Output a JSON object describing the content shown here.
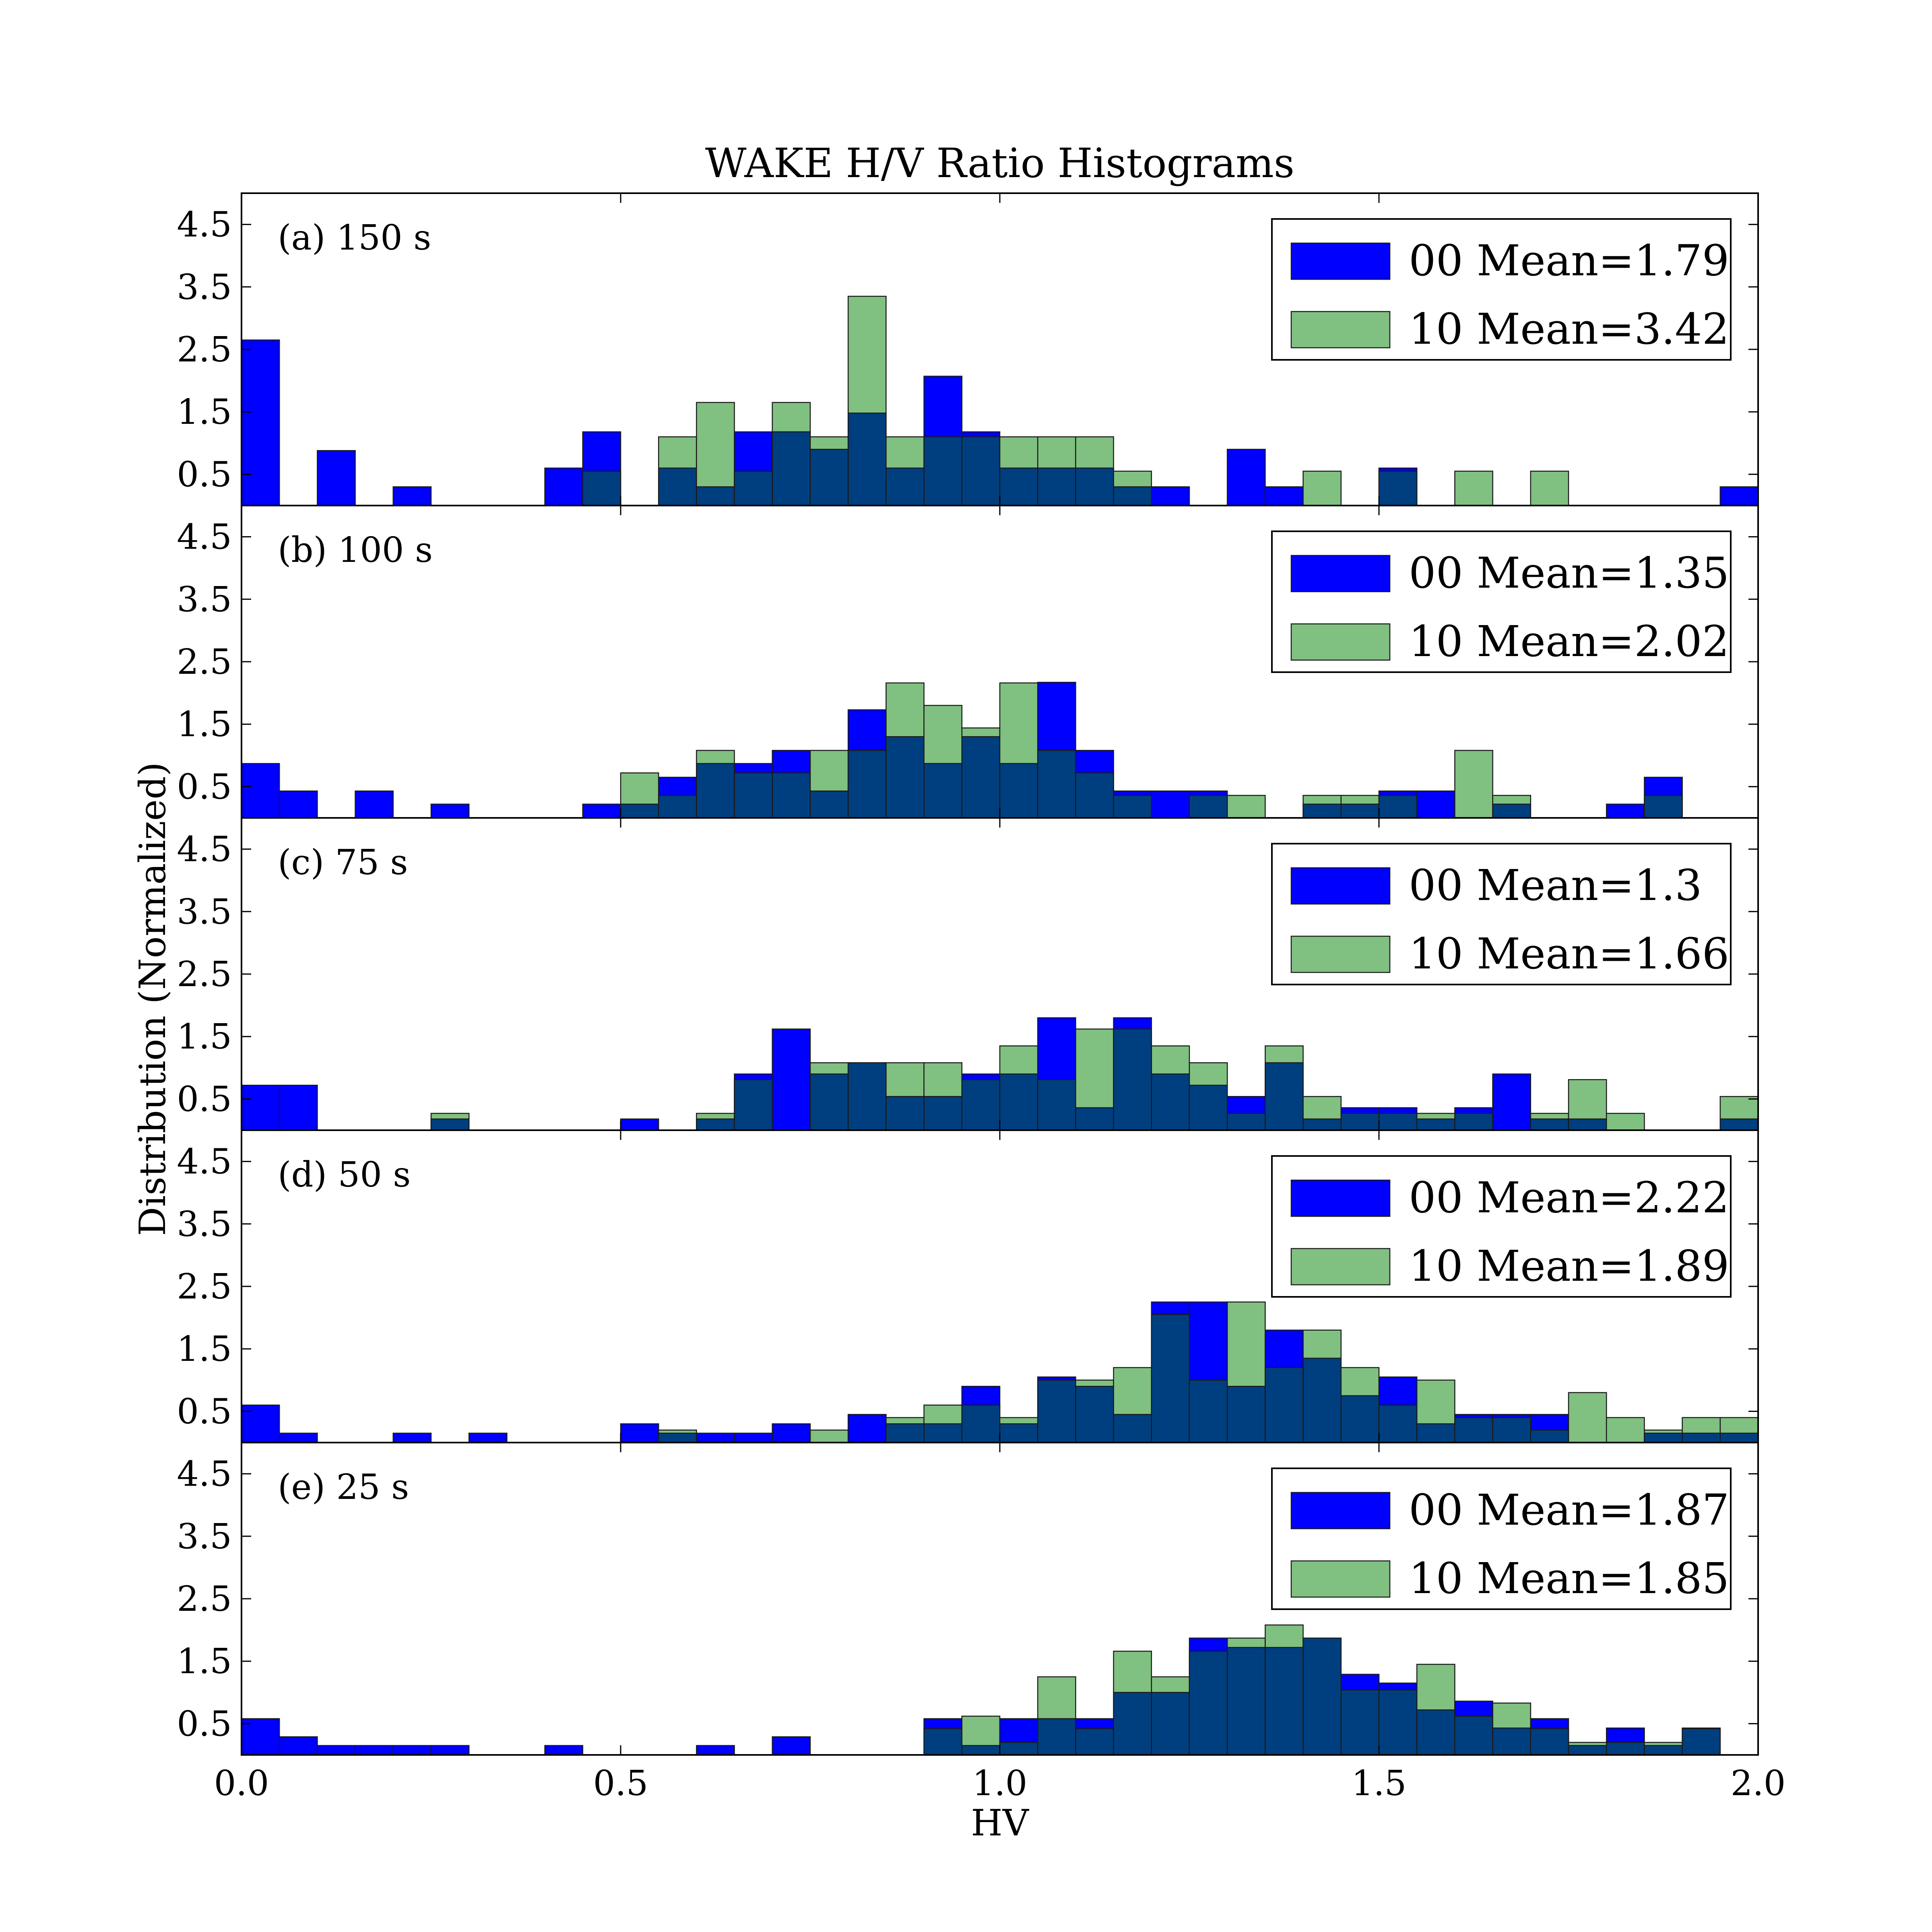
{
  "chart_data": {
    "type": "bar",
    "title": "WAKE H/V Ratio Histograms",
    "xlabel": "HV",
    "ylabel": "Distribution (Normalized)",
    "xlim": [
      0,
      2
    ],
    "ylim": [
      0,
      5
    ],
    "x_ticks": [
      "0.0",
      "0.5",
      "1.0",
      "1.5",
      "2.0"
    ],
    "y_ticks": [
      "0.5",
      "1.5",
      "2.5",
      "3.5",
      "4.5"
    ],
    "bin_width": 0.05,
    "grid": false,
    "legend_position": "top-right",
    "overlap_color": "#003f7f",
    "panels": [
      {
        "label": "(a) 150 s",
        "series": [
          {
            "name": "00 Mean=1.79",
            "color": "#0000ff",
            "values": [
              2.65,
              0,
              0.88,
              0,
              0.3,
              0,
              0,
              0,
              0.6,
              1.18,
              0,
              0.6,
              0.3,
              1.18,
              1.18,
              0.9,
              1.48,
              0.6,
              2.07,
              1.18,
              0.6,
              0.6,
              0.6,
              0.3,
              0.3,
              0,
              0.9,
              0.3,
              0,
              0,
              0.6,
              0,
              0,
              0,
              0,
              0,
              0,
              0,
              0,
              0.3
            ]
          },
          {
            "name": "10 Mean=3.42",
            "color": "#80c080",
            "values": [
              0,
              0,
              0,
              0,
              0,
              0,
              0,
              0,
              0,
              0.55,
              0,
              1.1,
              1.65,
              0.55,
              1.65,
              1.1,
              3.35,
              1.1,
              1.1,
              1.1,
              1.1,
              1.1,
              1.1,
              0.55,
              0,
              0,
              0,
              0,
              0.55,
              0,
              0.55,
              0,
              0.55,
              0,
              0.55,
              0,
              0,
              0,
              0,
              0
            ]
          }
        ]
      },
      {
        "label": "(b) 100 s",
        "series": [
          {
            "name": "00 Mean=1.35",
            "color": "#0000ff",
            "values": [
              0.87,
              0.43,
              0,
              0.43,
              0,
              0.22,
              0,
              0,
              0,
              0.22,
              0.22,
              0.65,
              0.87,
              0.87,
              1.08,
              0.43,
              1.73,
              1.3,
              0.87,
              1.3,
              0.87,
              2.17,
              1.08,
              0.43,
              0.43,
              0.43,
              0,
              0,
              0.22,
              0.22,
              0.43,
              0.43,
              0,
              0.22,
              0,
              0,
              0.22,
              0.65,
              0,
              0
            ]
          },
          {
            "name": "10 Mean=2.02",
            "color": "#80c080",
            "values": [
              0,
              0,
              0,
              0,
              0,
              0,
              0,
              0,
              0,
              0,
              0.72,
              0.36,
              1.08,
              0.72,
              0.72,
              1.08,
              1.08,
              2.16,
              1.8,
              1.44,
              2.16,
              1.08,
              0.72,
              0.36,
              0,
              0.36,
              0.36,
              0,
              0.36,
              0.36,
              0.36,
              0,
              1.08,
              0.36,
              0,
              0,
              0,
              0.36,
              0,
              0
            ]
          }
        ]
      },
      {
        "label": "(c) 75 s",
        "series": [
          {
            "name": "00 Mean=1.3",
            "color": "#0000ff",
            "values": [
              0.72,
              0.72,
              0,
              0,
              0,
              0.18,
              0,
              0,
              0,
              0,
              0.18,
              0,
              0.18,
              0.9,
              1.62,
              0.9,
              1.08,
              0.54,
              0.54,
              0.9,
              0.9,
              1.8,
              0.36,
              1.8,
              0.9,
              0.72,
              0.54,
              1.08,
              0.18,
              0.36,
              0.36,
              0.18,
              0.36,
              0.9,
              0.18,
              0.18,
              0,
              0,
              0,
              0.18
            ]
          },
          {
            "name": "10 Mean=1.66",
            "color": "#80c080",
            "values": [
              0,
              0,
              0,
              0,
              0,
              0.27,
              0,
              0,
              0,
              0,
              0,
              0,
              0.27,
              0.81,
              0,
              1.08,
              1.08,
              1.08,
              1.08,
              0.81,
              1.35,
              0.81,
              1.62,
              1.62,
              1.35,
              1.08,
              0.27,
              1.35,
              0.54,
              0.27,
              0.27,
              0.27,
              0.27,
              0,
              0.27,
              0.81,
              0.27,
              0,
              0,
              0.54
            ]
          }
        ]
      },
      {
        "label": "(d) 50 s",
        "series": [
          {
            "name": "00 Mean=2.22",
            "color": "#0000ff",
            "values": [
              0.6,
              0.15,
              0,
              0,
              0.15,
              0,
              0.15,
              0,
              0,
              0,
              0.3,
              0.15,
              0.15,
              0.15,
              0.3,
              0,
              0.45,
              0.3,
              0.3,
              0.9,
              0.3,
              1.05,
              0.9,
              0.45,
              2.25,
              2.25,
              0.9,
              1.8,
              1.35,
              0.75,
              1.05,
              0.3,
              0.45,
              0.45,
              0.45,
              0,
              0,
              0.15,
              0.15,
              0.15
            ]
          },
          {
            "name": "10 Mean=1.89",
            "color": "#80c080",
            "values": [
              0,
              0,
              0,
              0,
              0,
              0,
              0,
              0,
              0,
              0,
              0,
              0.2,
              0,
              0,
              0,
              0.2,
              0,
              0.4,
              0.6,
              0.6,
              0.4,
              1.0,
              1.0,
              1.2,
              2.05,
              1.0,
              2.25,
              1.2,
              1.8,
              1.2,
              0.6,
              1.0,
              0.4,
              0.4,
              0.2,
              0.8,
              0.4,
              0.2,
              0.4,
              0.4
            ]
          }
        ]
      },
      {
        "label": "(e) 25 s",
        "series": [
          {
            "name": "00 Mean=1.87",
            "color": "#0000ff",
            "values": [
              0.58,
              0.29,
              0.15,
              0.15,
              0.15,
              0.15,
              0,
              0,
              0.15,
              0,
              0,
              0,
              0.15,
              0,
              0.29,
              0,
              0,
              0,
              0.58,
              0.15,
              0.58,
              0.58,
              0.58,
              1.0,
              1.0,
              1.87,
              1.72,
              1.72,
              1.87,
              1.29,
              1.15,
              0.72,
              0.86,
              0.43,
              0.58,
              0.15,
              0.43,
              0.15,
              0.43,
              0
            ]
          },
          {
            "name": "10 Mean=1.85",
            "color": "#80c080",
            "values": [
              0,
              0,
              0,
              0,
              0,
              0,
              0,
              0,
              0,
              0,
              0,
              0,
              0,
              0,
              0,
              0,
              0,
              0,
              0.42,
              0.62,
              0.2,
              1.25,
              0.42,
              1.66,
              1.25,
              1.66,
              1.87,
              2.08,
              1.87,
              1.04,
              1.04,
              1.45,
              0.62,
              0.83,
              0.42,
              0.2,
              0.2,
              0.2,
              0.42,
              0
            ]
          }
        ]
      }
    ]
  }
}
